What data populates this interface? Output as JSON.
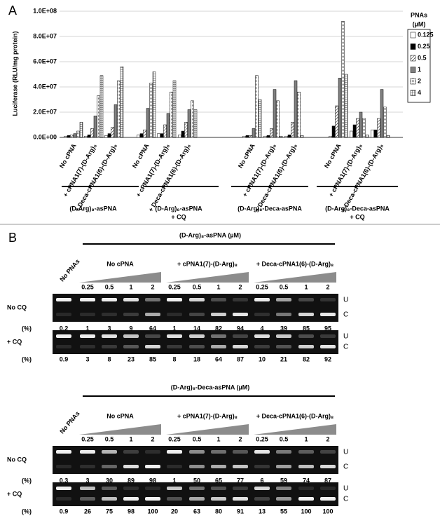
{
  "panel_labels": [
    "A",
    "B"
  ],
  "chart_data": {
    "type": "bar",
    "y_label": "Luciferase (RLU/mg protein)",
    "legend_title": "PNAs",
    "legend_unit": "(µM)",
    "ylim": [
      0,
      100000000
    ],
    "yticks": [
      {
        "value": 0,
        "label": "0.0E+00"
      },
      {
        "value": 20000000,
        "label": "2.0E+07"
      },
      {
        "value": 40000000,
        "label": "4.0E+07"
      },
      {
        "value": 60000000,
        "label": "6.0E+07"
      },
      {
        "value": 80000000,
        "label": "8.0E+07"
      },
      {
        "value": 100000000,
        "label": "1.0E+08"
      }
    ],
    "grid": true,
    "categories": [
      "No cPNA",
      "+ cPNA1(7)-(D-Arg)₈",
      "+ Deca-cPNA1(6)-(D-Arg)₈",
      "No cPNA",
      "+ cPNA1(7)-(D-Arg)₈",
      "+ Deca-cPNA1(6)-(D-Arg)₈",
      "No cPNA",
      "+ cPNA1(7)-(D-Arg)₈",
      "+ Deca-cPNA1(6)-(D-Arg)₈",
      "No cPNA",
      "+ cPNA1(7)-(D-Arg)₈",
      "+ Deca-cPNA1(6)-(D-Arg)₈"
    ],
    "group_labels": [
      [
        "(D-Arg)₈-asPNA"
      ],
      [
        "(D-Arg)₈-asPNA",
        "+ CQ"
      ],
      [
        "(D-Arg)₈-Deca-asPNA"
      ],
      [
        "(D-Arg)₈-Deca-asPNA",
        "+ CQ"
      ]
    ],
    "series": [
      {
        "name": "0.125",
        "color": "#ffffff",
        "pattern": "solid",
        "values": [
          1000000,
          1000000,
          1500000,
          2000000,
          3000000,
          2000000,
          1000000,
          1000000,
          1000000,
          1000000,
          5000000,
          6000000
        ]
      },
      {
        "name": "0.25",
        "color": "#000000",
        "pattern": "solid",
        "values": [
          1500000,
          2000000,
          3000000,
          3000000,
          3000000,
          5000000,
          1500000,
          1500000,
          2000000,
          9000000,
          10000000,
          6000000
        ]
      },
      {
        "name": "0.5",
        "color": "#ffffff",
        "pattern": "diagonal",
        "values": [
          2000000,
          7000000,
          8000000,
          6000000,
          10000000,
          12000000,
          1500000,
          7000000,
          12000000,
          25000000,
          15000000,
          15000000
        ]
      },
      {
        "name": "1",
        "color": "#808080",
        "pattern": "solid",
        "values": [
          3000000,
          17000000,
          26000000,
          23000000,
          19000000,
          22000000,
          7000000,
          38000000,
          45000000,
          47000000,
          20000000,
          38000000
        ]
      },
      {
        "name": "2",
        "color": "#f4f4f4",
        "pattern": "dots",
        "values": [
          5000000,
          33000000,
          45000000,
          43000000,
          36000000,
          29000000,
          49000000,
          29000000,
          36000000,
          92000000,
          15000000,
          24000000
        ]
      },
      {
        "name": "4",
        "color": "#e0e0e0",
        "pattern": "grid",
        "values": [
          12000000,
          49000000,
          56000000,
          52000000,
          45000000,
          22000000,
          30000000,
          1000000,
          1500000,
          50000000,
          2000000,
          1500000
        ]
      }
    ]
  },
  "gel_panels": [
    {
      "title": "(D-Arg)₈-asPNA (µM)",
      "groups": [
        "No cPNA",
        "+ cPNA1(7)-(D-Arg)₈",
        "+ Deca-cPNA1(6)-(D-Arg)₈"
      ],
      "no_pnas": "No PNAs",
      "concentrations": [
        0.25,
        0.5,
        1,
        2
      ],
      "percent_label": "(%)",
      "bands": [
        "U",
        "C"
      ],
      "rows": [
        {
          "label": "No CQ",
          "percent": [
            0.2,
            1,
            3,
            9,
            64,
            1,
            14,
            82,
            94,
            4,
            39,
            85,
            95
          ]
        },
        {
          "label": "+ CQ",
          "percent": [
            0.9,
            3,
            8,
            23,
            85,
            8,
            18,
            64,
            87,
            10,
            21,
            82,
            92
          ]
        }
      ]
    },
    {
      "title": "(D-Arg)₈-Deca-asPNA (µM)",
      "groups": [
        "No cPNA",
        "+ cPNA1(7)-(D-Arg)₈",
        "+ Deca-cPNA1(6)-(D-Arg)₈"
      ],
      "no_pnas": "No PNAs",
      "concentrations": [
        0.25,
        0.5,
        1,
        2
      ],
      "percent_label": "(%)",
      "bands": [
        "U",
        "C"
      ],
      "rows": [
        {
          "label": "No CQ",
          "percent": [
            0.3,
            3,
            30,
            89,
            98,
            1,
            50,
            65,
            77,
            6,
            59,
            74,
            87
          ]
        },
        {
          "label": "+ CQ",
          "percent": [
            0.9,
            26,
            75,
            98,
            100,
            20,
            63,
            80,
            91,
            13,
            55,
            100,
            100
          ]
        }
      ]
    }
  ]
}
